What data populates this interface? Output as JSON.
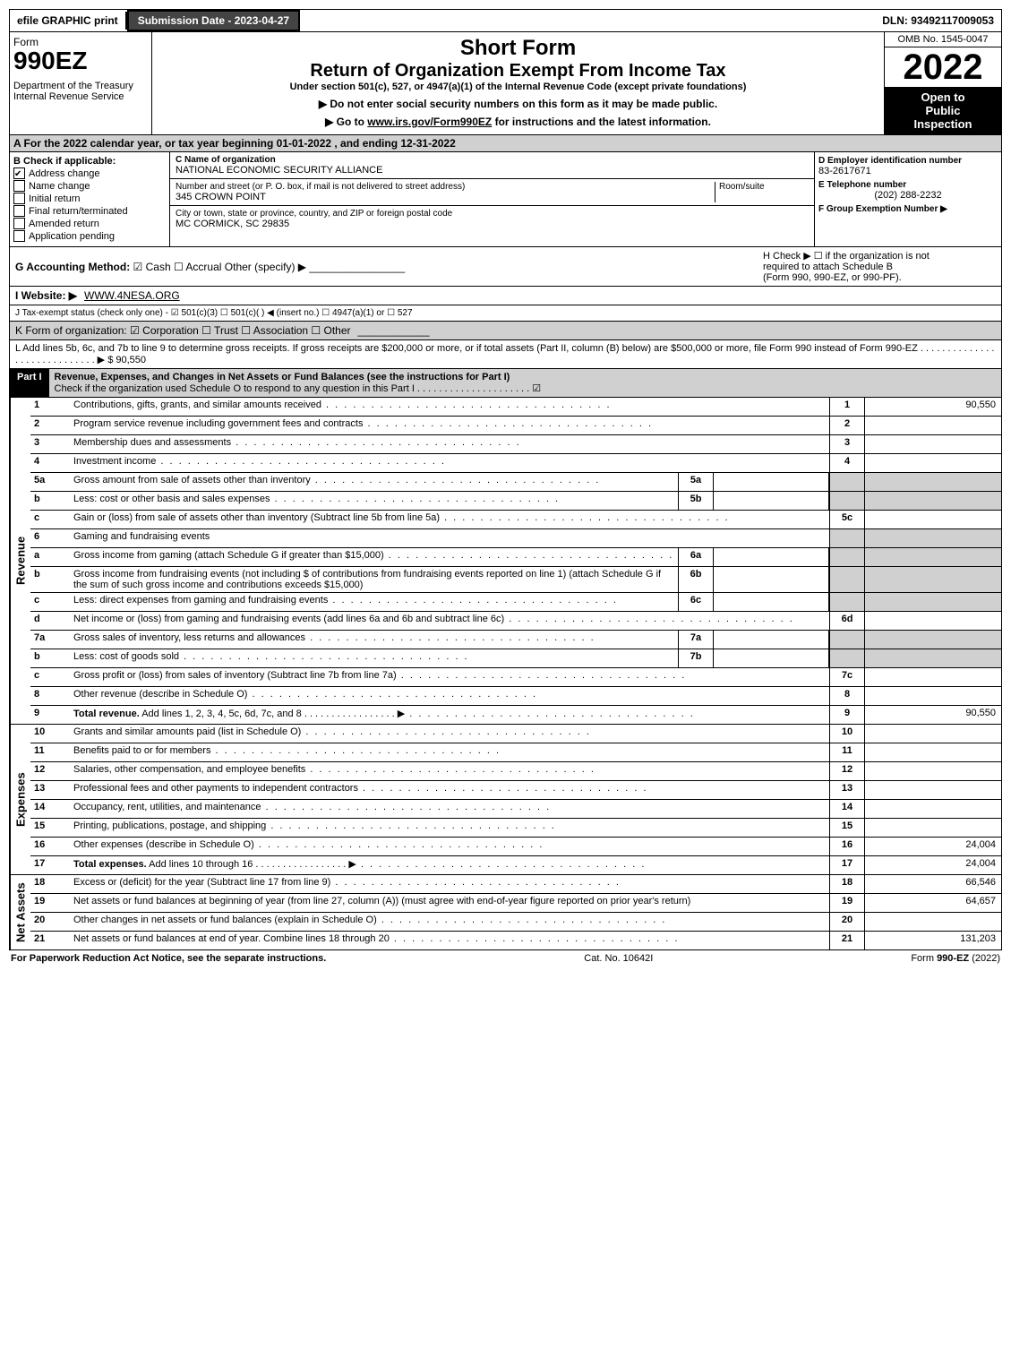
{
  "colors": {
    "header_gray": "#d0d0d0",
    "black": "#000000",
    "white": "#ffffff",
    "dark_btn": "#444444"
  },
  "top": {
    "efile": "efile GRAPHIC print",
    "submission": "Submission Date - 2023-04-27",
    "dln": "DLN: 93492117009053"
  },
  "header": {
    "form_label": "Form",
    "form_number": "990EZ",
    "dept1": "Department of the Treasury",
    "dept2": "Internal Revenue Service",
    "short_form": "Short Form",
    "title": "Return of Organization Exempt From Income Tax",
    "subtitle": "Under section 501(c), 527, or 4947(a)(1) of the Internal Revenue Code (except private foundations)",
    "note1": "▶ Do not enter social security numbers on this form as it may be made public.",
    "note2": "▶ Go to www.irs.gov/Form990EZ for instructions and the latest information.",
    "omb": "OMB No. 1545-0047",
    "year": "2022",
    "open1": "Open to",
    "open2": "Public",
    "open3": "Inspection"
  },
  "section_a": "A  For the 2022 calendar year, or tax year beginning 01-01-2022 , and ending 12-31-2022",
  "b": {
    "label": "B  Check if applicable:",
    "items": [
      {
        "label": "Address change",
        "checked": true
      },
      {
        "label": "Name change",
        "checked": false
      },
      {
        "label": "Initial return",
        "checked": false
      },
      {
        "label": "Final return/terminated",
        "checked": false
      },
      {
        "label": "Amended return",
        "checked": false
      },
      {
        "label": "Application pending",
        "checked": false
      }
    ]
  },
  "c": {
    "name_label": "C Name of organization",
    "name": "NATIONAL ECONOMIC SECURITY ALLIANCE",
    "street_label": "Number and street (or P. O. box, if mail is not delivered to street address)",
    "room_label": "Room/suite",
    "street": "345 CROWN POINT",
    "city_label": "City or town, state or province, country, and ZIP or foreign postal code",
    "city": "MC CORMICK, SC  29835"
  },
  "d": {
    "ein_label": "D Employer identification number",
    "ein": "83-2617671",
    "phone_label": "E Telephone number",
    "phone": "(202) 288-2232",
    "group_label": "F Group Exemption Number  ▶"
  },
  "g": {
    "label": "G Accounting Method:",
    "cash": "Cash",
    "accrual": "Accrual",
    "other": "Other (specify) ▶"
  },
  "h": {
    "text1": "H  Check ▶ ☐ if the organization is not",
    "text2": "required to attach Schedule B",
    "text3": "(Form 990, 990-EZ, or 990-PF)."
  },
  "i": {
    "label": "I Website: ▶",
    "value": "WWW.4NESA.ORG"
  },
  "j": {
    "text": "J Tax-exempt status (check only one) - ☑ 501(c)(3)  ☐ 501(c)(  ) ◀ (insert no.)  ☐ 4947(a)(1) or  ☐ 527"
  },
  "k": {
    "text": "K Form of organization:  ☑ Corporation   ☐ Trust   ☐ Association   ☐ Other"
  },
  "l": {
    "text": "L Add lines 5b, 6c, and 7b to line 9 to determine gross receipts. If gross receipts are $200,000 or more, or if total assets (Part II, column (B) below) are $500,000 or more, file Form 990 instead of Form 990-EZ  . . . . . . . . . . . . . . . . . . . . . . . . . . . . .  ▶ $ 90,550"
  },
  "part1": {
    "label": "Part I",
    "title": "Revenue, Expenses, and Changes in Net Assets or Fund Balances (see the instructions for Part I)",
    "check_note": "Check if the organization used Schedule O to respond to any question in this Part I . . . . . . . . . . . . . . . . . . . . . ☑"
  },
  "sections": {
    "revenue": "Revenue",
    "expenses": "Expenses",
    "netassets": "Net Assets"
  },
  "lines": [
    {
      "section": "revenue",
      "n": "1",
      "t": "Contributions, gifts, grants, and similar amounts received",
      "rn": "1",
      "rv": "90,550"
    },
    {
      "section": "revenue",
      "n": "2",
      "t": "Program service revenue including government fees and contracts",
      "rn": "2",
      "rv": ""
    },
    {
      "section": "revenue",
      "n": "3",
      "t": "Membership dues and assessments",
      "rn": "3",
      "rv": ""
    },
    {
      "section": "revenue",
      "n": "4",
      "t": "Investment income",
      "rn": "4",
      "rv": ""
    },
    {
      "section": "revenue",
      "n": "5a",
      "t": "Gross amount from sale of assets other than inventory",
      "mid_n": "5a",
      "mid_v": "",
      "rn": "",
      "rv": "",
      "shade": true
    },
    {
      "section": "revenue",
      "n": "b",
      "t": "Less: cost or other basis and sales expenses",
      "mid_n": "5b",
      "mid_v": "",
      "rn": "",
      "rv": "",
      "shade": true
    },
    {
      "section": "revenue",
      "n": "c",
      "t": "Gain or (loss) from sale of assets other than inventory (Subtract line 5b from line 5a)",
      "rn": "5c",
      "rv": ""
    },
    {
      "section": "revenue",
      "n": "6",
      "t": "Gaming and fundraising events",
      "rn": "",
      "rv": "",
      "shade": true,
      "nodots": true
    },
    {
      "section": "revenue",
      "n": "a",
      "t": "Gross income from gaming (attach Schedule G if greater than $15,000)",
      "mid_n": "6a",
      "mid_v": "",
      "rn": "",
      "rv": "",
      "shade": true
    },
    {
      "section": "revenue",
      "n": "b",
      "t": "Gross income from fundraising events (not including $                of contributions from fundraising events reported on line 1) (attach Schedule G if the sum of such gross income and contributions exceeds $15,000)",
      "mid_n": "6b",
      "mid_v": "",
      "rn": "",
      "rv": "",
      "shade": true,
      "wrap": true
    },
    {
      "section": "revenue",
      "n": "c",
      "t": "Less: direct expenses from gaming and fundraising events",
      "mid_n": "6c",
      "mid_v": "",
      "rn": "",
      "rv": "",
      "shade": true
    },
    {
      "section": "revenue",
      "n": "d",
      "t": "Net income or (loss) from gaming and fundraising events (add lines 6a and 6b and subtract line 6c)",
      "rn": "6d",
      "rv": ""
    },
    {
      "section": "revenue",
      "n": "7a",
      "t": "Gross sales of inventory, less returns and allowances",
      "mid_n": "7a",
      "mid_v": "",
      "rn": "",
      "rv": "",
      "shade": true
    },
    {
      "section": "revenue",
      "n": "b",
      "t": "Less: cost of goods sold",
      "mid_n": "7b",
      "mid_v": "",
      "rn": "",
      "rv": "",
      "shade": true
    },
    {
      "section": "revenue",
      "n": "c",
      "t": "Gross profit or (loss) from sales of inventory (Subtract line 7b from line 7a)",
      "rn": "7c",
      "rv": ""
    },
    {
      "section": "revenue",
      "n": "8",
      "t": "Other revenue (describe in Schedule O)",
      "rn": "8",
      "rv": ""
    },
    {
      "section": "revenue",
      "n": "9",
      "t": "Total revenue. Add lines 1, 2, 3, 4, 5c, 6d, 7c, and 8",
      "rn": "9",
      "rv": "90,550",
      "bold": true,
      "arrow": true
    },
    {
      "section": "expenses",
      "n": "10",
      "t": "Grants and similar amounts paid (list in Schedule O)",
      "rn": "10",
      "rv": ""
    },
    {
      "section": "expenses",
      "n": "11",
      "t": "Benefits paid to or for members",
      "rn": "11",
      "rv": ""
    },
    {
      "section": "expenses",
      "n": "12",
      "t": "Salaries, other compensation, and employee benefits",
      "rn": "12",
      "rv": ""
    },
    {
      "section": "expenses",
      "n": "13",
      "t": "Professional fees and other payments to independent contractors",
      "rn": "13",
      "rv": ""
    },
    {
      "section": "expenses",
      "n": "14",
      "t": "Occupancy, rent, utilities, and maintenance",
      "rn": "14",
      "rv": ""
    },
    {
      "section": "expenses",
      "n": "15",
      "t": "Printing, publications, postage, and shipping",
      "rn": "15",
      "rv": ""
    },
    {
      "section": "expenses",
      "n": "16",
      "t": "Other expenses (describe in Schedule O)",
      "rn": "16",
      "rv": "24,004"
    },
    {
      "section": "expenses",
      "n": "17",
      "t": "Total expenses. Add lines 10 through 16",
      "rn": "17",
      "rv": "24,004",
      "bold": true,
      "arrow": true
    },
    {
      "section": "netassets",
      "n": "18",
      "t": "Excess or (deficit) for the year (Subtract line 17 from line 9)",
      "rn": "18",
      "rv": "66,546"
    },
    {
      "section": "netassets",
      "n": "19",
      "t": "Net assets or fund balances at beginning of year (from line 27, column (A)) (must agree with end-of-year figure reported on prior year's return)",
      "rn": "19",
      "rv": "64,657",
      "wrap": true
    },
    {
      "section": "netassets",
      "n": "20",
      "t": "Other changes in net assets or fund balances (explain in Schedule O)",
      "rn": "20",
      "rv": ""
    },
    {
      "section": "netassets",
      "n": "21",
      "t": "Net assets or fund balances at end of year. Combine lines 18 through 20",
      "rn": "21",
      "rv": "131,203"
    }
  ],
  "footer": {
    "left": "For Paperwork Reduction Act Notice, see the separate instructions.",
    "mid": "Cat. No. 10642I",
    "right": "Form 990-EZ (2022)"
  }
}
